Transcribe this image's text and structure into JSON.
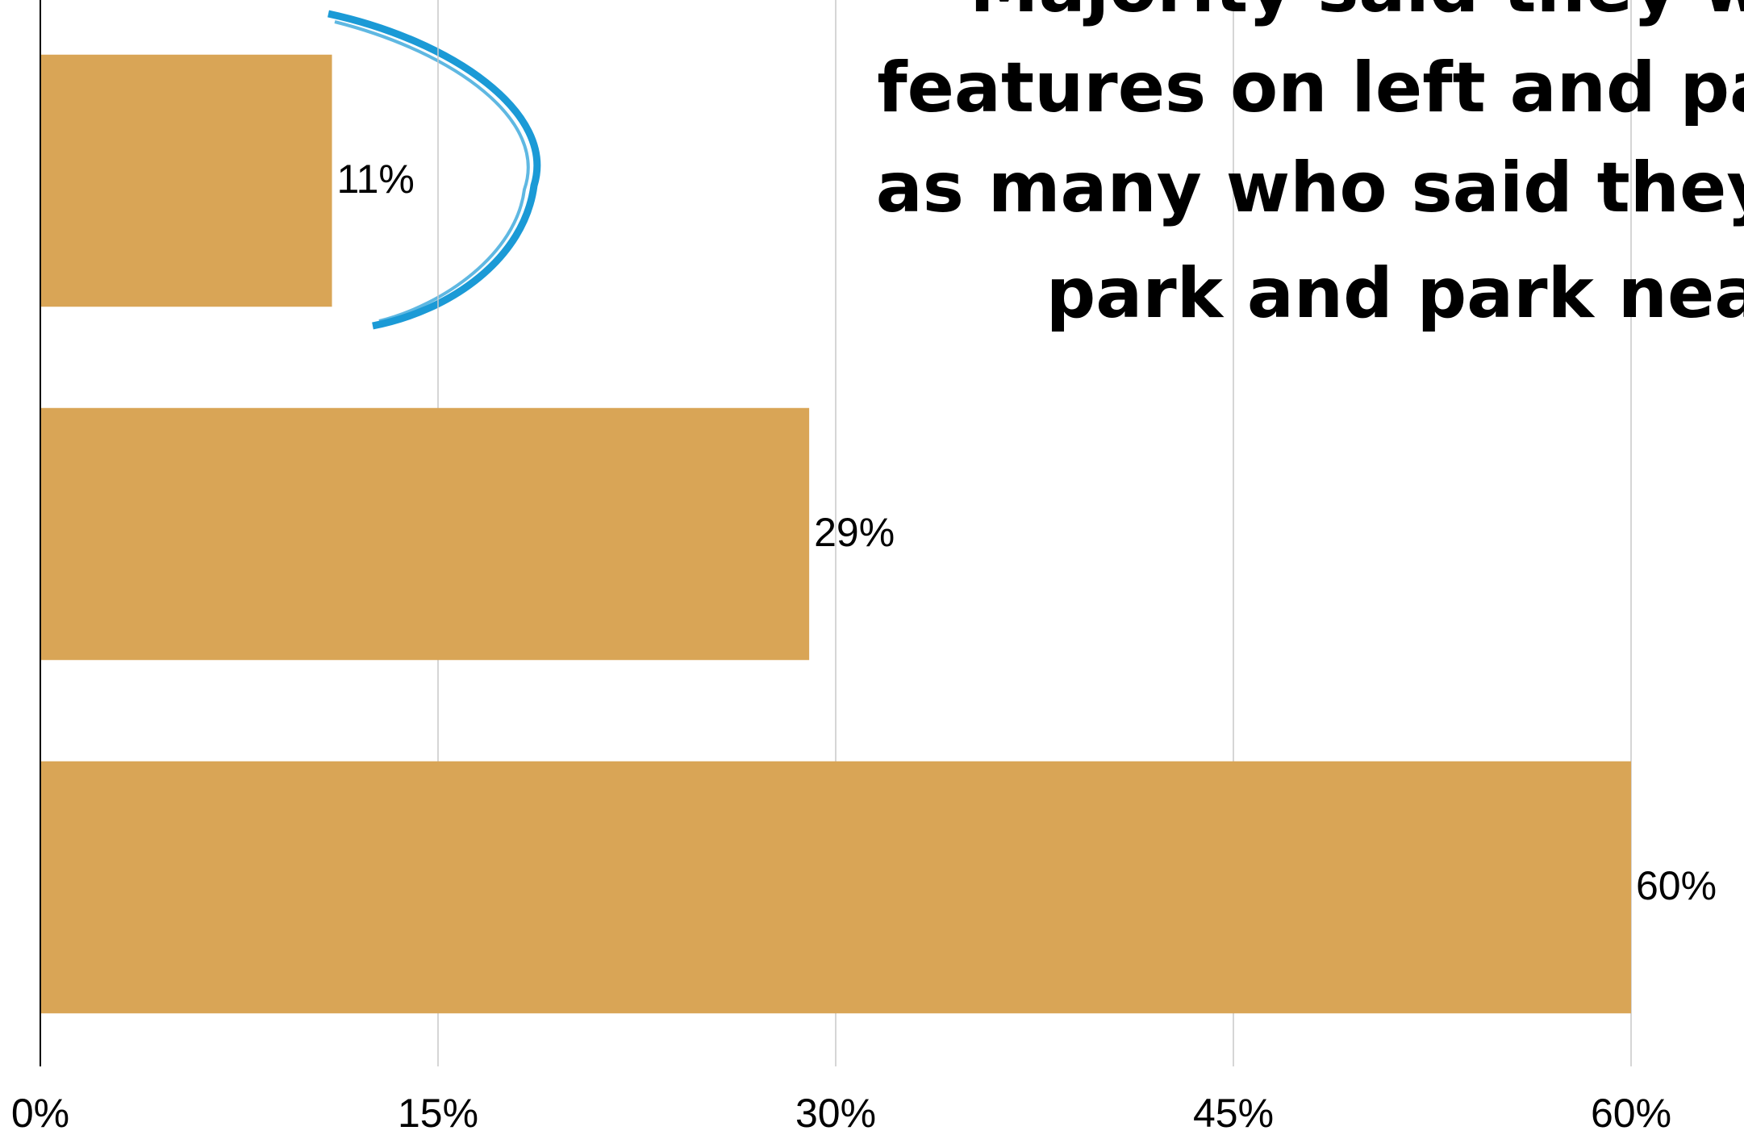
{
  "chart_data": {
    "type": "barh",
    "annotation_lines": [
      "Majority said they will",
      "features on left and park n",
      "as many who said they will",
      "park and park nea"
    ],
    "categories": [
      null,
      null,
      null
    ],
    "values": [
      11,
      29,
      60
    ],
    "value_labels": [
      "11%",
      "29%",
      "60%"
    ],
    "color": "#d9a556",
    "xlim": [
      0,
      60
    ],
    "xticks": [
      {
        "value": 0,
        "label": "0%"
      },
      {
        "value": 15,
        "label": "15%"
      },
      {
        "value": 30,
        "label": "30%"
      },
      {
        "value": 45,
        "label": "45%"
      },
      {
        "value": 60,
        "label": "60%"
      }
    ],
    "grid": true,
    "annotation_color": "#1b9ad6"
  }
}
